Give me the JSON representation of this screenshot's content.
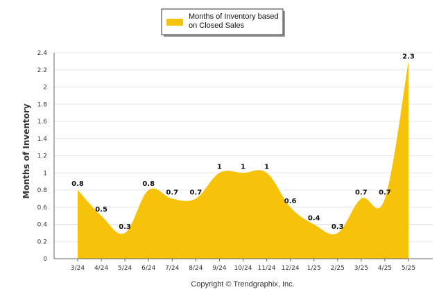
{
  "chart_data": {
    "type": "area",
    "categories": [
      "3/24",
      "4/24",
      "5/24",
      "6/24",
      "7/24",
      "8/24",
      "9/24",
      "10/24",
      "11/24",
      "12/24",
      "1/25",
      "2/25",
      "3/25",
      "4/25",
      "5/25"
    ],
    "series": [
      {
        "name": "Months of Inventory based on Closed Sales",
        "values": [
          0.8,
          0.5,
          0.3,
          0.8,
          0.7,
          0.7,
          1,
          1,
          1,
          0.6,
          0.4,
          0.3,
          0.7,
          0.7,
          2.3
        ],
        "labels": [
          "0.8",
          "0.5",
          "0.3",
          "0.8",
          "0.7",
          "0.7",
          "1",
          "1",
          "1",
          "0.6",
          "0.4",
          "0.3",
          "0.7",
          "0.7",
          "2.3"
        ],
        "color": "#f7c20a"
      }
    ],
    "legend_lines": [
      "Months of Inventory based",
      "on Closed Sales"
    ],
    "ylabel": "Months of Inventory",
    "ylim": [
      0,
      2.4
    ],
    "yticks": [
      "0",
      "0.2",
      "0.4",
      "0.6",
      "0.8",
      "1",
      "1.2",
      "1.4",
      "1.6",
      "1.8",
      "2",
      "2.2",
      "2.4"
    ],
    "grid": true,
    "legend_position": "top-center"
  },
  "credit": "Copyright © Trendgraphix, Inc."
}
